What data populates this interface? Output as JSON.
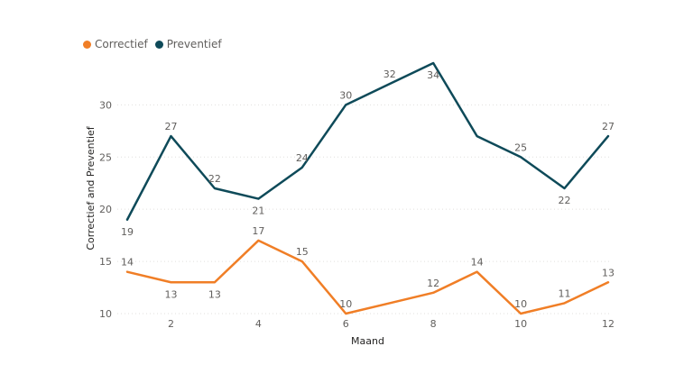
{
  "chart_data": {
    "type": "line",
    "x": [
      1,
      2,
      3,
      4,
      5,
      6,
      7,
      8,
      9,
      10,
      11,
      12
    ],
    "x_ticks": [
      2,
      4,
      6,
      8,
      10,
      12
    ],
    "xlabel": "Maand",
    "ylabel": "Correctief and Preventief",
    "y_ticks": [
      10,
      15,
      20,
      25,
      30
    ],
    "ylim": [
      9,
      35
    ],
    "grid": true,
    "legend_position": "top-left",
    "series": [
      {
        "name": "Correctief",
        "color": "#f07e26",
        "values": [
          14,
          13,
          13,
          17,
          15,
          10,
          11,
          12,
          14,
          10,
          11,
          13
        ],
        "labels": [
          "14",
          "13",
          "13",
          "17",
          "15",
          "10",
          "",
          "12",
          "14",
          "10",
          "11",
          "13"
        ],
        "label_side": [
          "above",
          "below",
          "below",
          "above",
          "above",
          "above",
          "",
          "above",
          "above",
          "above",
          "above",
          "above"
        ]
      },
      {
        "name": "Preventief",
        "color": "#0e4a59",
        "values": [
          19,
          27,
          22,
          21,
          24,
          30,
          32,
          34,
          27,
          25,
          22,
          27
        ],
        "labels": [
          "19",
          "27",
          "22",
          "21",
          "24",
          "30",
          "32",
          "34",
          "",
          "25",
          "22",
          "27"
        ],
        "label_side": [
          "below",
          "above",
          "above",
          "below",
          "above",
          "above",
          "above",
          "below",
          "",
          "above",
          "below",
          "above"
        ]
      }
    ]
  }
}
